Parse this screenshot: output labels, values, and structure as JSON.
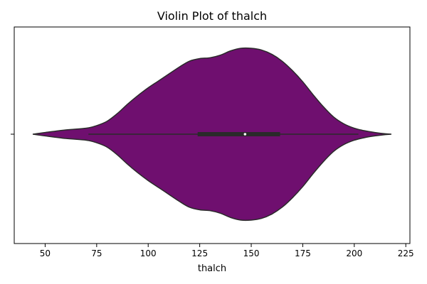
{
  "chart_data": {
    "type": "violin",
    "title": "Violin Plot of thalch",
    "xlabel": "thalch",
    "ylabel": "",
    "orientation": "horizontal",
    "xlim": [
      35,
      227
    ],
    "x_ticks": [
      50,
      75,
      100,
      125,
      150,
      175,
      200,
      225
    ],
    "fill_color": "#6f0f6f",
    "edge_color": "#2a2a2a",
    "grid": false,
    "series": [
      {
        "density_x": [
          44,
          50,
          60,
          70,
          75,
          80,
          85,
          90,
          95,
          100,
          105,
          110,
          115,
          120,
          125,
          130,
          135,
          140,
          145,
          150,
          155,
          160,
          165,
          170,
          175,
          180,
          185,
          190,
          195,
          200,
          205,
          210,
          215,
          218
        ],
        "density_half_width": [
          0.0,
          0.02,
          0.05,
          0.07,
          0.1,
          0.15,
          0.24,
          0.35,
          0.45,
          0.54,
          0.62,
          0.7,
          0.78,
          0.85,
          0.88,
          0.89,
          0.92,
          0.97,
          1.0,
          1.0,
          0.98,
          0.93,
          0.85,
          0.74,
          0.61,
          0.46,
          0.32,
          0.2,
          0.12,
          0.07,
          0.04,
          0.02,
          0.005,
          0.0
        ],
        "whisker_low": 71,
        "q1": 124,
        "median": 147,
        "q3": 164,
        "whisker_high": 202
      }
    ]
  }
}
